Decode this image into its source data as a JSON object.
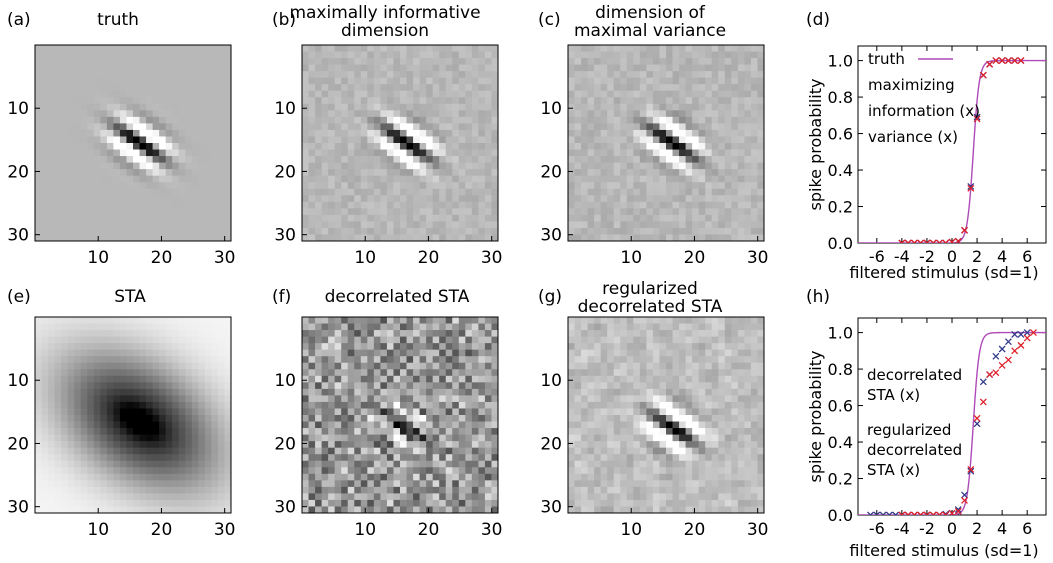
{
  "colors": {
    "truth": "#b04ab8",
    "information": "#333a8a",
    "variance": "#e0202a",
    "decorrelated": "#3d57b5",
    "regularized": "#e0202a",
    "text": "#000000"
  },
  "chart_data": [
    {
      "id": "a",
      "type": "heatmap",
      "panel_letter": "(a)",
      "title_lines": [
        "truth"
      ],
      "colormap": "gray",
      "x_ticks": [
        "10",
        "20",
        "30"
      ],
      "y_ticks": [
        "10",
        "20",
        "30"
      ],
      "xlim": [
        0,
        31
      ],
      "ylim": [
        0,
        31
      ],
      "pattern": {
        "kind": "gabor",
        "center": [
          16,
          15
        ],
        "angle_deg": -35,
        "sigma_long": 3.2,
        "sigma_short": 1.4,
        "wavelength": 4.2,
        "amplitude": 0.9,
        "noise": 0.0,
        "background": 0.72
      }
    },
    {
      "id": "b",
      "type": "heatmap",
      "panel_letter": "(b)",
      "title_lines": [
        "maximally informative",
        "dimension"
      ],
      "colormap": "gray",
      "x_ticks": [
        "10",
        "20",
        "30"
      ],
      "y_ticks": [
        "10",
        "20",
        "30"
      ],
      "xlim": [
        0,
        31
      ],
      "ylim": [
        0,
        31
      ],
      "pattern": {
        "kind": "gabor",
        "center": [
          16,
          15
        ],
        "angle_deg": -35,
        "sigma_long": 3.2,
        "sigma_short": 1.4,
        "wavelength": 4.2,
        "amplitude": 0.85,
        "noise": 0.05,
        "background": 0.72
      }
    },
    {
      "id": "c",
      "type": "heatmap",
      "panel_letter": "(c)",
      "title_lines": [
        "dimension of",
        "maximal variance"
      ],
      "colormap": "gray",
      "x_ticks": [
        "10",
        "20",
        "30"
      ],
      "y_ticks": [
        "10",
        "20",
        "30"
      ],
      "xlim": [
        0,
        31
      ],
      "ylim": [
        0,
        31
      ],
      "pattern": {
        "kind": "gabor",
        "center": [
          16,
          15
        ],
        "angle_deg": -35,
        "sigma_long": 3.2,
        "sigma_short": 1.4,
        "wavelength": 4.2,
        "amplitude": 0.85,
        "noise": 0.055,
        "background": 0.72
      }
    },
    {
      "id": "e",
      "type": "heatmap",
      "panel_letter": "(e)",
      "title_lines": [
        "STA"
      ],
      "colormap": "gray",
      "x_ticks": [
        "10",
        "20",
        "30"
      ],
      "y_ticks": [
        "10",
        "20",
        "30"
      ],
      "xlim": [
        0,
        31
      ],
      "ylim": [
        0,
        31
      ],
      "pattern": {
        "kind": "blob",
        "center": [
          16,
          16
        ],
        "angle_deg": -35,
        "sigma_long": 9.5,
        "sigma_short": 6.0,
        "amplitude": 0.85,
        "core_sigma_long": 2.6,
        "core_sigma_short": 1.4,
        "core_amplitude": 0.3,
        "noise": 0.0,
        "background": 0.96
      }
    },
    {
      "id": "f",
      "type": "heatmap",
      "panel_letter": "(f)",
      "title_lines": [
        "decorrelated STA"
      ],
      "title_color": "#3d57b5",
      "colormap": "gray",
      "x_ticks": [
        "10",
        "20",
        "30"
      ],
      "y_ticks": [
        "10",
        "20",
        "30"
      ],
      "xlim": [
        0,
        31
      ],
      "ylim": [
        0,
        31
      ],
      "pattern": {
        "kind": "checker",
        "center": [
          16,
          17
        ],
        "angle_deg": -35,
        "sigma_long": 3.2,
        "sigma_short": 1.4,
        "wavelength": 4.2,
        "amplitude": 0.5,
        "noise": 0.22,
        "background": 0.6
      }
    },
    {
      "id": "g",
      "type": "heatmap",
      "panel_letter": "(g)",
      "title_lines": [
        "regularized",
        "decorrelated STA"
      ],
      "title_color": "#e0202a",
      "colormap": "gray",
      "x_ticks": [
        "10",
        "20",
        "30"
      ],
      "y_ticks": [
        "10",
        "20",
        "30"
      ],
      "xlim": [
        0,
        31
      ],
      "ylim": [
        0,
        31
      ],
      "pattern": {
        "kind": "smooth",
        "center": [
          16,
          17
        ],
        "angle_deg": -35,
        "sigma_long": 3.0,
        "sigma_short": 1.5,
        "wavelength": 4.4,
        "amplitude": 0.85,
        "noise": 0.06,
        "background": 0.75
      }
    },
    {
      "id": "d",
      "type": "scatter",
      "panel_letter": "(d)",
      "xlabel": "filtered stimulus (sd=1)",
      "ylabel": "spike probability",
      "xlim": [
        -7.5,
        7.5
      ],
      "ylim": [
        0,
        1.08
      ],
      "x_ticks": [
        -6,
        -4,
        -2,
        0,
        2,
        4,
        6
      ],
      "x_tick_labels": [
        "-6",
        "-4",
        "-2",
        "0",
        "2",
        "4",
        "6"
      ],
      "y_ticks": [
        0,
        0.2,
        0.4,
        0.6,
        0.8,
        1.0
      ],
      "y_tick_labels": [
        "0.0",
        "0.2",
        "0.4",
        "0.6",
        "0.8",
        "1.0"
      ],
      "legend_lines": [
        {
          "text": "truth",
          "color": "#b04ab8",
          "line": true
        },
        {
          "text": "maximizing",
          "color": "#000000"
        },
        {
          "text": "information (x)",
          "color": "#333a8a"
        },
        {
          "text": "variance (x)",
          "color": "#e0202a"
        }
      ],
      "series": [
        {
          "name": "truth",
          "kind": "curve",
          "color": "#b04ab8",
          "threshold": 1.7,
          "slope": 4.2
        },
        {
          "name": "information (x)",
          "kind": "markers",
          "color": "#333a8a",
          "x": [
            -4.0,
            -3.5,
            -3.0,
            -2.5,
            -2.0,
            -1.5,
            -1.0,
            -0.5,
            0.0,
            0.5,
            1.0,
            1.5,
            2.0,
            2.5,
            3.0,
            3.5,
            4.0,
            4.5,
            5.0,
            5.5
          ],
          "y": [
            0.0,
            0.0,
            0.0,
            0.0,
            0.0,
            0.0,
            0.0,
            0.0,
            0.005,
            0.01,
            0.07,
            0.31,
            0.69,
            0.92,
            0.98,
            1.0,
            1.0,
            1.0,
            1.0,
            1.0
          ]
        },
        {
          "name": "variance (x)",
          "kind": "markers",
          "color": "#e0202a",
          "x": [
            -4.0,
            -3.5,
            -3.0,
            -2.5,
            -2.0,
            -1.5,
            -1.0,
            -0.5,
            0.0,
            0.5,
            1.0,
            1.5,
            2.0,
            2.5,
            3.0,
            3.5,
            4.0,
            4.5,
            5.0,
            5.5
          ],
          "y": [
            0.0,
            0.0,
            0.0,
            0.0,
            0.0,
            0.0,
            0.0,
            0.0,
            0.005,
            0.01,
            0.07,
            0.3,
            0.68,
            0.92,
            0.98,
            1.0,
            1.0,
            1.0,
            1.0,
            1.0
          ]
        }
      ]
    },
    {
      "id": "h",
      "type": "scatter",
      "panel_letter": "(h)",
      "xlabel": "filtered stimulus (sd=1)",
      "ylabel": "spike probability",
      "xlim": [
        -7.5,
        7.5
      ],
      "ylim": [
        0,
        1.08
      ],
      "x_ticks": [
        -6,
        -4,
        -2,
        0,
        2,
        4,
        6
      ],
      "x_tick_labels": [
        "-6",
        "-4",
        "-2",
        "0",
        "2",
        "4",
        "6"
      ],
      "y_ticks": [
        0,
        0.2,
        0.4,
        0.6,
        0.8,
        1.0
      ],
      "y_tick_labels": [
        "0.0",
        "0.2",
        "0.4",
        "0.6",
        "0.8",
        "1.0"
      ],
      "legend_lines": [
        {
          "text": "decorrelated",
          "color": "#333a8a"
        },
        {
          "text": "STA (x)",
          "color": "#333a8a"
        },
        {
          "text": "regularized",
          "color": "#e0202a",
          "gap_before": true
        },
        {
          "text": "decorrelated",
          "color": "#e0202a"
        },
        {
          "text": "STA (x)",
          "color": "#e0202a"
        }
      ],
      "series": [
        {
          "name": "truth",
          "kind": "curve",
          "color": "#b04ab8",
          "threshold": 1.7,
          "slope": 4.2
        },
        {
          "name": "decorrelated STA (x)",
          "kind": "markers",
          "color": "#333a8a",
          "x": [
            -6.5,
            -6.0,
            -5.5,
            -5.0,
            -4.5,
            -4.0,
            -3.5,
            -3.0,
            -2.5,
            -2.0,
            -1.5,
            -1.0,
            -0.5,
            0.0,
            0.5,
            1.0,
            1.5,
            2.0,
            2.5,
            3.0,
            3.5,
            4.0,
            4.5,
            5.0,
            5.5,
            6.0
          ],
          "y": [
            0.0,
            0.0,
            0.0,
            0.0,
            0.0,
            0.0,
            0.0,
            0.0,
            0.0,
            0.0,
            0.0,
            0.0,
            0.005,
            0.01,
            0.03,
            0.11,
            0.24,
            0.5,
            0.73,
            0.77,
            0.87,
            0.91,
            0.95,
            0.99,
            0.99,
            1.0
          ]
        },
        {
          "name": "regularized decorrelated STA (x)",
          "kind": "markers",
          "color": "#e0202a",
          "x": [
            -4.0,
            -3.5,
            -3.0,
            -2.5,
            -2.0,
            -1.5,
            -1.0,
            -0.5,
            0.0,
            0.5,
            1.0,
            1.5,
            2.0,
            2.5,
            3.0,
            3.5,
            4.0,
            4.5,
            5.0,
            5.5,
            6.0,
            6.5
          ],
          "y": [
            0.0,
            0.0,
            0.0,
            0.0,
            0.0,
            0.0,
            0.0,
            0.0,
            0.01,
            0.02,
            0.08,
            0.25,
            0.53,
            0.62,
            0.77,
            0.78,
            0.82,
            0.85,
            0.9,
            0.93,
            0.97,
            1.0
          ]
        }
      ]
    }
  ]
}
